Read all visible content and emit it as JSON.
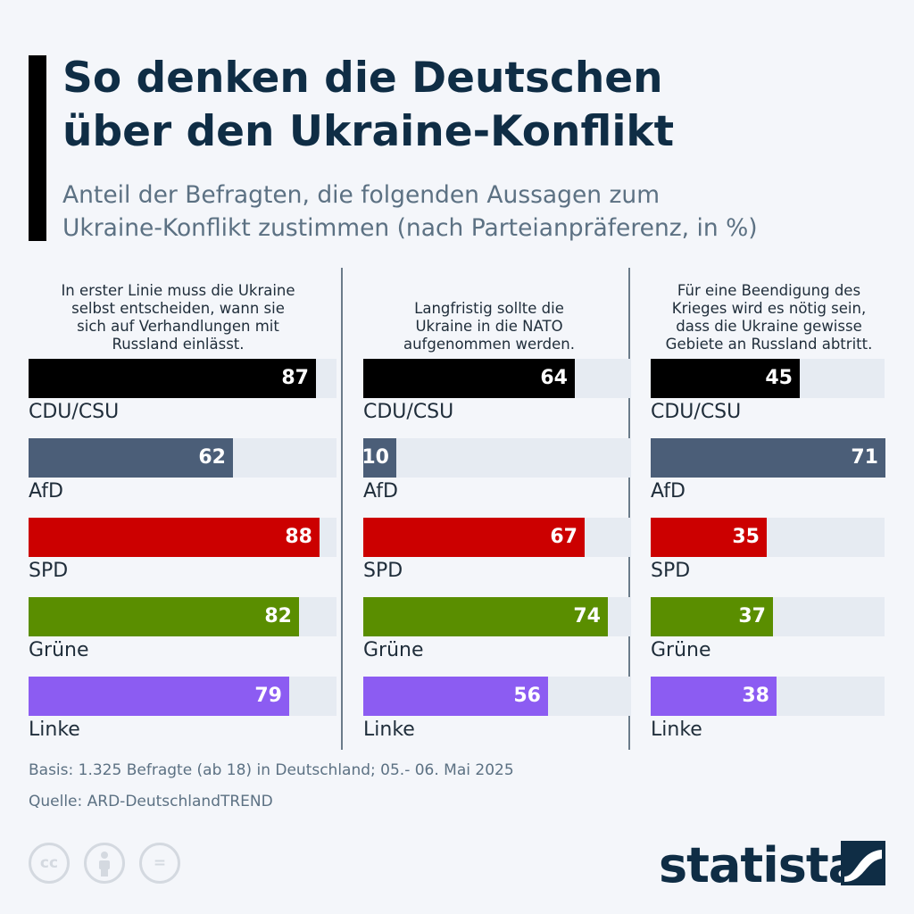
{
  "header": {
    "title_line1": "So denken die Deutschen",
    "title_line2": "über den Ukraine-Konflikt",
    "subtitle_line1": "Anteil der Befragten, die folgenden Aussagen zum",
    "subtitle_line2": "Ukraine-Konflikt zustimmen (nach Parteianpräferenz, in %)"
  },
  "chart_data": {
    "type": "bar",
    "orientation": "horizontal",
    "unit": "%",
    "xlim": [
      0,
      100
    ],
    "grid": false,
    "categories": [
      "CDU/CSU",
      "AfD",
      "SPD",
      "Grüne",
      "Linke"
    ],
    "colors": [
      "#000000",
      "#4b5e78",
      "#cc0000",
      "#5a8e00",
      "#8c5cf2"
    ],
    "panels": [
      {
        "title_lines": [
          "In erster Linie muss die Ukraine",
          "selbst entscheiden, wann sie",
          "sich auf Verhandlungen mit",
          "Russland einlässt."
        ],
        "values": [
          87,
          62,
          88,
          82,
          79
        ]
      },
      {
        "title_lines": [
          "Langfristig sollte die",
          "Ukraine in die NATO",
          "aufgenommen werden."
        ],
        "values": [
          64,
          10,
          67,
          74,
          56
        ]
      },
      {
        "title_lines": [
          "Für eine Beendigung des",
          "Krieges wird es nötig sein,",
          "dass die Ukraine gewisse",
          "Gebiete an Russland abtritt."
        ],
        "values": [
          45,
          71,
          35,
          37,
          38
        ]
      }
    ]
  },
  "footer": {
    "basis": "Basis: 1.325 Befragte (ab 18) in Deutschland; 05.- 06. Mai 2025",
    "source": "Quelle: ARD-DeutschlandTREND",
    "licenses": [
      {
        "icon": "cc-icon",
        "text": "cc"
      },
      {
        "icon": "attribution-icon",
        "text": ""
      },
      {
        "icon": "no-derivatives-icon",
        "text": "="
      }
    ],
    "brand": "statista",
    "brand_icon": "statista-logo-icon"
  }
}
